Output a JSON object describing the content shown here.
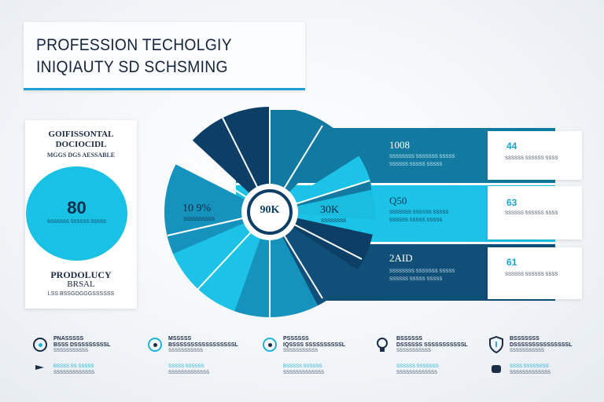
{
  "header": {
    "title_line1": "PROFESSION TECHOLGIY",
    "title_line2": "INIQIAUTY SD SCHSMING"
  },
  "left_card": {
    "heading1": "GOIFISSONTAL",
    "heading2": "DOCIOCIDL",
    "heading3": "MGGS DGS AESSABLE",
    "stat_value": "80",
    "stat_caption": "SSSSSSS SSSSSS SSSSS",
    "footer1": "PRODOLUCY",
    "footer2": "BRSAL",
    "footer3": "LSS BSSGOGGGSSSSSS"
  },
  "pie": {
    "left_label": "10 9%",
    "left_caption": "SSSSSSSSSS",
    "center_label": "90K",
    "arrow_label": "30K",
    "arrow_caption": "SSSSSSSS",
    "colors": [
      "#0d3f66",
      "#127aa0",
      "#1cc3e6",
      "#0f4f78",
      "#1593bd"
    ]
  },
  "bars": [
    {
      "value": "1008",
      "caption": "SSSSSSSS SSSSSSS SSSSS",
      "caption2": "SSSSSS SSSSS SSSSS",
      "color": "#127aa0"
    },
    {
      "value": "Q50",
      "caption": "SSSSSSS SSSSSS SSSSS",
      "caption2": "SSSSSS SSSSS SSSSS",
      "color": "#1cc3e6"
    },
    {
      "value": "2AID",
      "caption": "SSSSSSSS SSSSSSS SSSSS",
      "caption2": "SSSSSS SSSSS SSSSS",
      "color": "#0f4f78"
    }
  ],
  "side_cards": [
    {
      "value": "44",
      "caption": "SSSSSS SSSSSS SSSS"
    },
    {
      "value": "63",
      "caption": "SSSSSS SSSSSS SSSS"
    },
    {
      "value": "61",
      "caption": "SSSSSS SSSSSS SSSS"
    }
  ],
  "icon_row": [
    {
      "icon": "target-icon",
      "l1": "PNASSSSS",
      "l2": "BSSS DSSSSSSSSSL",
      "l3": "SSSSSSSSSSS",
      "l4": "BSSSS SS SSSSS",
      "l5": "SSSSSSSSSSSSS"
    },
    {
      "icon": "gear-icon",
      "l1": "MSSSSS",
      "l2": "BSSSSSSSSSSSSSSSSSL",
      "l3": "SSSSSSSSSSS",
      "l4": "SSSSS SSSSSS",
      "l5": "SSSSSSSSSSSSS"
    },
    {
      "icon": "chart-icon",
      "l1": "PSSSSSS",
      "l2": "IQSSSS SSSSSSSSSSL",
      "l3": "SSSSSSSSSSS",
      "l4": "BSSSSS SSSSSS",
      "l5": "SSSSSSSSSSSSS"
    },
    {
      "icon": "bulb-icon",
      "l1": "BSSSSSS",
      "l2": "DSSSSSS SSSSSSSSSSSL",
      "l3": "SSSSSSSSSSS",
      "l4": "SSSSSS SSSSSSS",
      "l5": "SSSSSSSSSSSSS"
    },
    {
      "icon": "shield-icon",
      "l1": "BSSSSSSS",
      "l2": "DSSSSSSSSSSSSSSSL",
      "l3": "SSSSSSSSSSS",
      "l4": "SSSS SSSSSSSS",
      "l5": "SSSSSSSSSSSSS"
    }
  ]
}
